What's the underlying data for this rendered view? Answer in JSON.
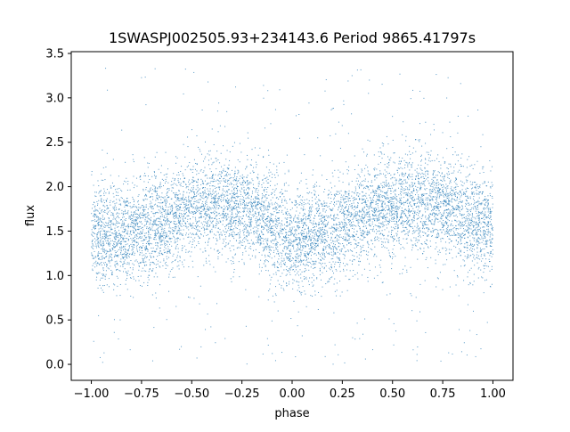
{
  "chart_data": {
    "type": "scatter",
    "title": "1SWASPJ002505.93+234143.6 Period 9865.41797s",
    "xlabel": "phase",
    "ylabel": "flux",
    "xlim": [
      -1.1,
      1.1
    ],
    "ylim": [
      -0.18,
      3.52
    ],
    "xticks": [
      -1.0,
      -0.75,
      -0.5,
      -0.25,
      0.0,
      0.25,
      0.5,
      0.75,
      1.0
    ],
    "xtick_labels": [
      "−1.00",
      "−0.75",
      "−0.50",
      "−0.25",
      "0.00",
      "0.25",
      "0.50",
      "0.75",
      "1.00"
    ],
    "yticks": [
      0.0,
      0.5,
      1.0,
      1.5,
      2.0,
      2.5,
      3.0,
      3.5
    ],
    "ytick_labels": [
      "0.0",
      "0.5",
      "1.0",
      "1.5",
      "2.0",
      "2.5",
      "3.0",
      "3.5"
    ],
    "series": [
      {
        "color": "#1f77b4",
        "x_range": [
          -1.0,
          1.0
        ],
        "trend_x": [
          -1.0,
          -0.85,
          -0.7,
          -0.55,
          -0.4,
          -0.3,
          -0.2,
          -0.05,
          0.0,
          0.1,
          0.2,
          0.3,
          0.45,
          0.6,
          0.7,
          0.8,
          0.9,
          1.0
        ],
        "trend_y": [
          1.5,
          1.45,
          1.55,
          1.72,
          1.8,
          1.8,
          1.72,
          1.5,
          1.45,
          1.42,
          1.5,
          1.62,
          1.75,
          1.8,
          1.8,
          1.75,
          1.62,
          1.55
        ],
        "scatter_sigma": 0.28,
        "y_clip": [
          0.0,
          3.35
        ]
      }
    ],
    "grid": false,
    "legend": "none"
  }
}
